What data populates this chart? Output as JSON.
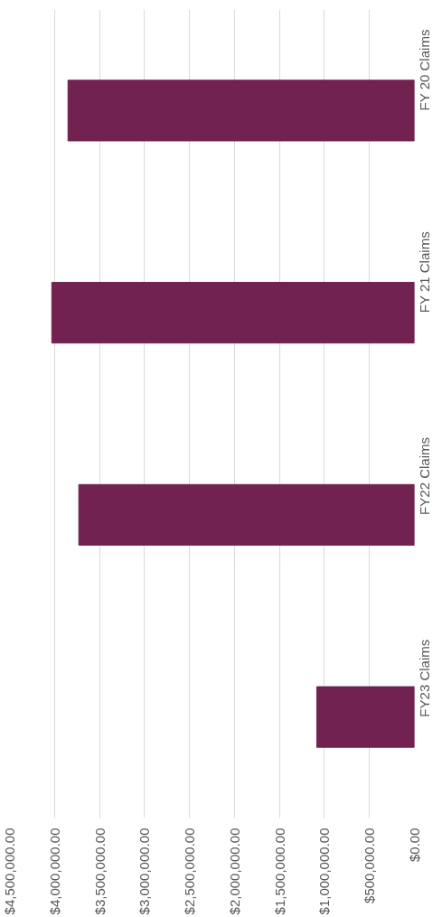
{
  "chart_data": {
    "type": "bar",
    "orientation": "horizontal",
    "categories": [
      "FY 20 Claims",
      "FY 21 Claims",
      "FY22 Claims",
      "FY23 Claims"
    ],
    "values": [
      3850000,
      4030000,
      3730000,
      1085000
    ],
    "color": "#722250",
    "xlim": [
      4500000,
      0
    ],
    "xticks": [
      {
        "value": 0,
        "label": "$0.00"
      },
      {
        "value": 500000,
        "label": "$500,000.00"
      },
      {
        "value": 1000000,
        "label": "$1,000,000.00"
      },
      {
        "value": 1500000,
        "label": "$1,500,000.00"
      },
      {
        "value": 2000000,
        "label": "$2,000,000.00"
      },
      {
        "value": 2500000,
        "label": "$2,500,000.00"
      },
      {
        "value": 3000000,
        "label": "$3,000,000.00"
      },
      {
        "value": 3500000,
        "label": "$3,500,000.00"
      },
      {
        "value": 4000000,
        "label": "$4,000,000.00"
      },
      {
        "value": 4500000,
        "label": "$4,500,000.00"
      }
    ],
    "grid": "x"
  }
}
